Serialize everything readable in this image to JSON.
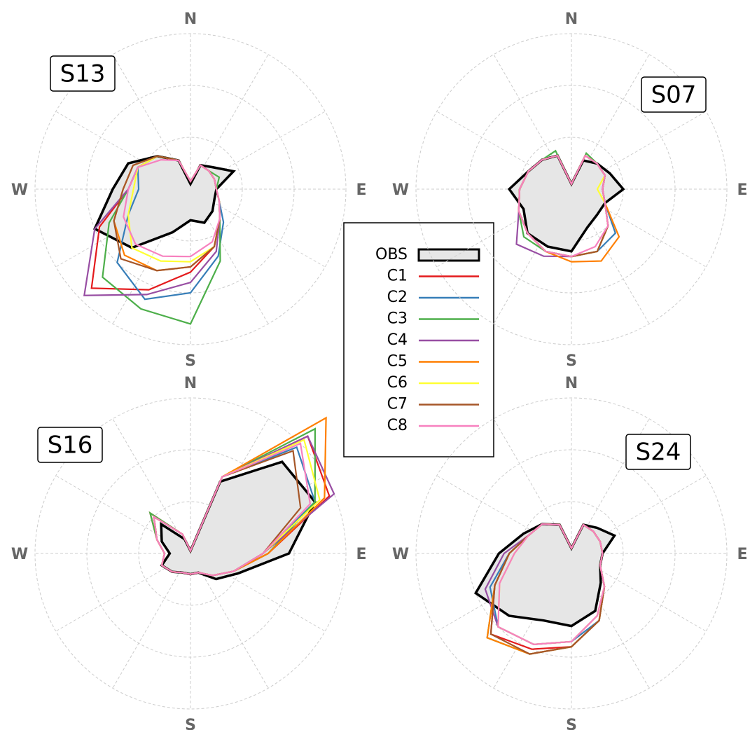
{
  "chart_data": [
    {
      "type": "polar-line",
      "title": "S13",
      "legend": true,
      "x": [
        0,
        22.5,
        45,
        67.5,
        90,
        112.5,
        135,
        157.5,
        180,
        202.5,
        225,
        247.5,
        270,
        292.5,
        315,
        337.5
      ],
      "xticks": [
        {
          "value": 0,
          "label": "N"
        },
        {
          "value": 90,
          "label": "E"
        },
        {
          "value": 180,
          "label": "S"
        },
        {
          "value": 270,
          "label": "W"
        }
      ],
      "angle_grid": [
        0,
        30,
        60,
        90,
        120,
        150,
        180,
        210,
        240,
        270,
        300,
        330
      ],
      "rlim": [
        0,
        3
      ],
      "rgrid": [
        1,
        2,
        3
      ],
      "series": [
        {
          "name": "OBS",
          "color": "#000000",
          "fill": "#e6e6e6",
          "values": [
            0.1,
            0.5,
            0.6,
            0.9,
            0.5,
            0.5,
            0.6,
            0.7,
            0.6,
            0.9,
            1.6,
            2.0,
            1.5,
            1.3,
            0.9,
            0.6
          ]
        },
        {
          "name": "C1",
          "color": "#e41a1c",
          "values": [
            0.15,
            0.5,
            0.5,
            0.5,
            0.5,
            0.6,
            0.8,
            1.2,
            1.6,
            2.1,
            2.7,
            1.9,
            1.2,
            1.1,
            0.9,
            0.6
          ]
        },
        {
          "name": "C2",
          "color": "#377eb8",
          "values": [
            0.15,
            0.5,
            0.5,
            0.5,
            0.5,
            0.6,
            0.9,
            1.4,
            2.0,
            2.3,
            2.0,
            1.3,
            1.0,
            1.1,
            0.9,
            0.6
          ]
        },
        {
          "name": "C3",
          "color": "#4daf4a",
          "values": [
            0.15,
            0.5,
            0.5,
            0.6,
            0.5,
            0.6,
            0.8,
            1.5,
            2.6,
            2.5,
            2.4,
            1.7,
            1.2,
            1.1,
            0.9,
            0.6
          ]
        },
        {
          "name": "C4",
          "color": "#984ea3",
          "values": [
            0.15,
            0.5,
            0.5,
            0.5,
            0.5,
            0.6,
            0.8,
            1.3,
            1.8,
            2.2,
            2.9,
            2.0,
            1.2,
            1.1,
            0.9,
            0.6
          ]
        },
        {
          "name": "C5",
          "color": "#ff7f00",
          "values": [
            0.15,
            0.5,
            0.5,
            0.5,
            0.5,
            0.6,
            0.8,
            1.2,
            1.5,
            1.7,
            1.8,
            1.6,
            1.3,
            1.2,
            0.9,
            0.6
          ]
        },
        {
          "name": "C6",
          "color": "#ffff33",
          "values": [
            0.15,
            0.5,
            0.5,
            0.5,
            0.5,
            0.6,
            0.8,
            1.2,
            1.4,
            1.5,
            1.6,
            1.3,
            1.1,
            1.1,
            0.9,
            0.6
          ]
        },
        {
          "name": "C7",
          "color": "#a65628",
          "values": [
            0.15,
            0.5,
            0.5,
            0.5,
            0.5,
            0.6,
            0.8,
            1.2,
            1.5,
            1.7,
            1.9,
            1.6,
            1.3,
            1.2,
            0.9,
            0.6
          ]
        },
        {
          "name": "C8",
          "color": "#f781bf",
          "values": [
            0.15,
            0.5,
            0.5,
            0.5,
            0.5,
            0.6,
            0.8,
            1.1,
            1.3,
            1.4,
            1.5,
            1.4,
            1.2,
            1.1,
            0.8,
            0.6
          ]
        }
      ]
    },
    {
      "type": "polar-line",
      "title": "S07",
      "x": [
        0,
        22.5,
        45,
        67.5,
        90,
        112.5,
        135,
        157.5,
        180,
        202.5,
        225,
        247.5,
        270,
        292.5,
        315,
        337.5
      ],
      "xticks": [
        {
          "value": 0,
          "label": "N"
        },
        {
          "value": 90,
          "label": "E"
        },
        {
          "value": 180,
          "label": "S"
        },
        {
          "value": 270,
          "label": "W"
        }
      ],
      "angle_grid": [
        0,
        30,
        60,
        90,
        120,
        150,
        180,
        210,
        240,
        270,
        300,
        330
      ],
      "rlim": [
        0,
        3
      ],
      "rgrid": [
        1,
        2,
        3
      ],
      "series": [
        {
          "name": "OBS",
          "color": "#000000",
          "fill": "#e6e6e6",
          "values": [
            0.1,
            0.6,
            0.7,
            0.8,
            1.0,
            0.7,
            0.7,
            0.8,
            1.2,
            1.2,
            1.2,
            1.0,
            1.2,
            0.9,
            0.8,
            0.7
          ]
        },
        {
          "name": "C1",
          "color": "#e41a1c",
          "values": [
            0.1,
            0.7,
            0.7,
            0.7,
            0.6,
            0.7,
            1.0,
            1.3,
            1.3,
            1.3,
            1.2,
            1.1,
            1.0,
            0.9,
            0.8,
            0.7
          ]
        },
        {
          "name": "C2",
          "color": "#377eb8",
          "values": [
            0.1,
            0.7,
            0.7,
            0.7,
            0.6,
            0.7,
            1.2,
            1.3,
            1.3,
            1.3,
            1.2,
            1.1,
            1.0,
            0.9,
            0.8,
            0.7
          ]
        },
        {
          "name": "C3",
          "color": "#4daf4a",
          "values": [
            0.1,
            0.75,
            0.7,
            0.7,
            0.6,
            0.7,
            1.0,
            1.3,
            1.3,
            1.3,
            1.3,
            1.1,
            1.0,
            0.9,
            0.8,
            0.8
          ]
        },
        {
          "name": "C4",
          "color": "#984ea3",
          "values": [
            0.1,
            0.7,
            0.7,
            0.7,
            0.6,
            0.7,
            1.0,
            1.3,
            1.3,
            1.4,
            1.5,
            1.1,
            1.0,
            0.9,
            0.8,
            0.7
          ]
        },
        {
          "name": "C5",
          "color": "#ff7f00",
          "values": [
            0.1,
            0.7,
            0.7,
            0.7,
            0.6,
            0.7,
            1.3,
            1.5,
            1.4,
            1.3,
            1.2,
            1.1,
            1.0,
            0.9,
            0.8,
            0.7
          ]
        },
        {
          "name": "C6",
          "color": "#ffff33",
          "values": [
            0.1,
            0.7,
            0.7,
            0.7,
            0.5,
            0.7,
            1.0,
            1.3,
            1.3,
            1.3,
            1.2,
            1.1,
            1.0,
            0.9,
            0.8,
            0.7
          ]
        },
        {
          "name": "C7",
          "color": "#a65628",
          "values": [
            0.1,
            0.7,
            0.7,
            0.7,
            0.6,
            0.7,
            1.0,
            1.3,
            1.3,
            1.3,
            1.2,
            1.1,
            1.0,
            0.9,
            0.8,
            0.7
          ]
        },
        {
          "name": "C8",
          "color": "#f781bf",
          "values": [
            0.1,
            0.7,
            0.7,
            0.7,
            0.6,
            0.7,
            1.0,
            1.2,
            1.3,
            1.3,
            1.2,
            1.1,
            1.0,
            0.9,
            0.8,
            0.7
          ]
        }
      ]
    },
    {
      "type": "polar-line",
      "title": "S16",
      "x": [
        0,
        22.5,
        45,
        67.5,
        90,
        112.5,
        135,
        157.5,
        180,
        202.5,
        225,
        247.5,
        270,
        292.5,
        315,
        337.5
      ],
      "xticks": [
        {
          "value": 0,
          "label": "N"
        },
        {
          "value": 90,
          "label": "E"
        },
        {
          "value": 180,
          "label": "S"
        },
        {
          "value": 270,
          "label": "W"
        }
      ],
      "angle_grid": [
        0,
        30,
        60,
        90,
        120,
        150,
        180,
        210,
        240,
        270,
        300,
        330
      ],
      "rlim": [
        0,
        3
      ],
      "rgrid": [
        1,
        2,
        3
      ],
      "series": [
        {
          "name": "OBS",
          "color": "#000000",
          "fill": "#e6e6e6",
          "values": [
            0.05,
            1.5,
            2.5,
            2.6,
            1.9,
            1.0,
            0.7,
            0.4,
            0.4,
            0.4,
            0.5,
            0.6,
            0.4,
            0.6,
            0.8,
            0.3
          ]
        },
        {
          "name": "C1",
          "color": "#e41a1c",
          "values": [
            0.05,
            1.6,
            3.2,
            2.9,
            1.5,
            0.9,
            0.6,
            0.4,
            0.4,
            0.4,
            0.5,
            0.6,
            0.5,
            0.7,
            1.1,
            0.4
          ]
        },
        {
          "name": "C2",
          "color": "#377eb8",
          "values": [
            0.05,
            1.6,
            2.9,
            2.6,
            1.4,
            0.9,
            0.6,
            0.4,
            0.4,
            0.4,
            0.5,
            0.6,
            0.5,
            0.7,
            1.0,
            0.4
          ]
        },
        {
          "name": "C3",
          "color": "#4daf4a",
          "values": [
            0.05,
            1.6,
            3.4,
            2.6,
            1.5,
            0.9,
            0.6,
            0.4,
            0.4,
            0.4,
            0.5,
            0.6,
            0.5,
            0.7,
            1.1,
            0.4
          ]
        },
        {
          "name": "C4",
          "color": "#984ea3",
          "values": [
            0.05,
            1.6,
            3.2,
            3.0,
            1.4,
            0.9,
            0.6,
            0.4,
            0.4,
            0.4,
            0.5,
            0.6,
            0.5,
            0.7,
            1.0,
            0.4
          ]
        },
        {
          "name": "C5",
          "color": "#ff7f00",
          "values": [
            0.05,
            1.6,
            3.7,
            2.8,
            1.5,
            0.9,
            0.6,
            0.4,
            0.4,
            0.4,
            0.5,
            0.6,
            0.5,
            0.7,
            1.0,
            0.4
          ]
        },
        {
          "name": "C6",
          "color": "#ffff33",
          "values": [
            0.05,
            1.6,
            3.1,
            2.7,
            1.4,
            0.9,
            0.6,
            0.4,
            0.4,
            0.4,
            0.5,
            0.6,
            0.5,
            0.7,
            1.0,
            0.4
          ]
        },
        {
          "name": "C7",
          "color": "#a65628",
          "values": [
            0.05,
            1.6,
            2.8,
            2.3,
            1.4,
            0.9,
            0.6,
            0.4,
            0.4,
            0.4,
            0.5,
            0.6,
            0.5,
            0.7,
            1.0,
            0.4
          ]
        },
        {
          "name": "C8",
          "color": "#f781bf",
          "values": [
            0.05,
            1.6,
            3.0,
            2.5,
            1.4,
            0.9,
            0.6,
            0.4,
            0.4,
            0.4,
            0.5,
            0.6,
            0.5,
            0.7,
            1.0,
            0.4
          ]
        }
      ]
    },
    {
      "type": "polar-line",
      "title": "S24",
      "x": [
        0,
        22.5,
        45,
        67.5,
        90,
        112.5,
        135,
        157.5,
        180,
        202.5,
        225,
        247.5,
        270,
        292.5,
        315,
        337.5
      ],
      "xticks": [
        {
          "value": 0,
          "label": "N"
        },
        {
          "value": 90,
          "label": "E"
        },
        {
          "value": 180,
          "label": "S"
        },
        {
          "value": 270,
          "label": "W"
        }
      ],
      "angle_grid": [
        0,
        30,
        60,
        90,
        120,
        150,
        180,
        210,
        240,
        270,
        300,
        330
      ],
      "rlim": [
        0,
        3
      ],
      "rgrid": [
        1,
        2,
        3
      ],
      "series": [
        {
          "name": "OBS",
          "color": "#000000",
          "fill": "#e6e6e6",
          "values": [
            0.1,
            0.6,
            0.7,
            0.9,
            0.6,
            0.6,
            0.8,
            1.2,
            1.4,
            1.4,
            1.7,
            2.0,
            1.4,
            1.0,
            0.8,
            0.6
          ]
        },
        {
          "name": "C1",
          "color": "#e41a1c",
          "values": [
            0.1,
            0.6,
            0.6,
            0.6,
            0.6,
            0.6,
            0.9,
            1.4,
            1.8,
            2.0,
            2.2,
            1.6,
            1.2,
            0.9,
            0.8,
            0.6
          ]
        },
        {
          "name": "C2",
          "color": "#377eb8",
          "values": [
            0.1,
            0.6,
            0.6,
            0.6,
            0.6,
            0.6,
            0.9,
            1.4,
            1.7,
            1.9,
            2.0,
            1.7,
            1.2,
            0.9,
            0.8,
            0.6
          ]
        },
        {
          "name": "C3",
          "color": "#4daf4a",
          "values": [
            0.1,
            0.6,
            0.6,
            0.6,
            0.6,
            0.6,
            0.9,
            1.4,
            1.8,
            2.1,
            2.3,
            1.6,
            1.2,
            0.9,
            0.8,
            0.6
          ]
        },
        {
          "name": "C4",
          "color": "#984ea3",
          "values": [
            0.1,
            0.6,
            0.6,
            0.6,
            0.6,
            0.6,
            0.9,
            1.3,
            1.7,
            1.9,
            2.0,
            1.8,
            1.3,
            0.9,
            0.8,
            0.6
          ]
        },
        {
          "name": "C5",
          "color": "#ff7f00",
          "values": [
            0.1,
            0.6,
            0.6,
            0.6,
            0.6,
            0.6,
            0.9,
            1.4,
            1.8,
            2.1,
            2.3,
            1.6,
            1.2,
            0.9,
            0.8,
            0.6
          ]
        },
        {
          "name": "C6",
          "color": "#ffff33",
          "values": [
            0.1,
            0.6,
            0.6,
            0.6,
            0.6,
            0.6,
            0.9,
            1.3,
            1.7,
            1.9,
            2.0,
            1.5,
            1.1,
            0.9,
            0.8,
            0.6
          ]
        },
        {
          "name": "C7",
          "color": "#a65628",
          "values": [
            0.1,
            0.6,
            0.6,
            0.6,
            0.6,
            0.6,
            0.9,
            1.4,
            1.8,
            2.1,
            2.2,
            1.6,
            1.2,
            0.9,
            0.8,
            0.6
          ]
        },
        {
          "name": "C8",
          "color": "#f781bf",
          "values": [
            0.1,
            0.6,
            0.6,
            0.6,
            0.6,
            0.6,
            0.9,
            1.3,
            1.7,
            1.9,
            2.0,
            1.5,
            1.1,
            0.9,
            0.8,
            0.6
          ]
        }
      ]
    }
  ]
}
